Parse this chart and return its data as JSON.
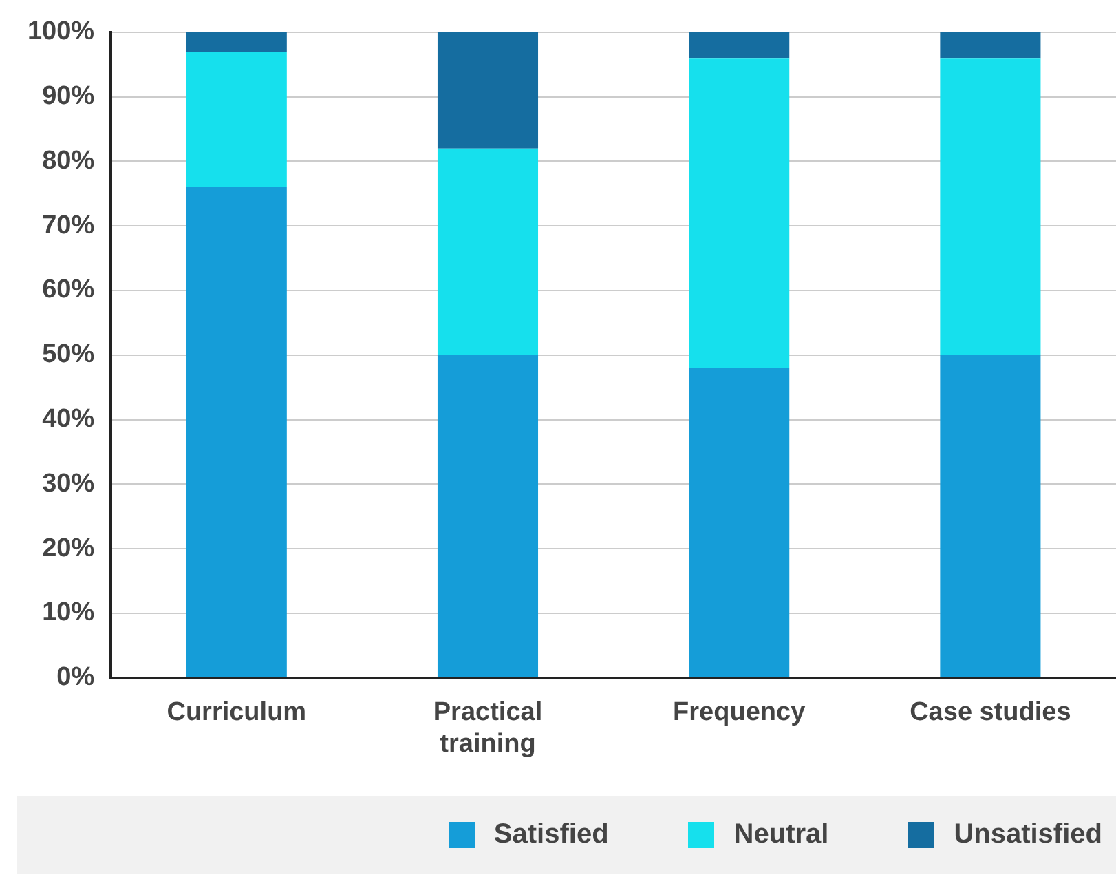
{
  "chart_data": {
    "type": "bar",
    "stacked": true,
    "categories": [
      "Curriculum",
      "Practical training",
      "Frequency",
      "Case studies"
    ],
    "series": [
      {
        "name": "Satisfied",
        "color": "#159dd8",
        "values": [
          76,
          50,
          48,
          50
        ]
      },
      {
        "name": "Neutral",
        "color": "#16e0ed",
        "values": [
          21,
          32,
          48,
          46
        ]
      },
      {
        "name": "Unsatisfied",
        "color": "#156da0",
        "values": [
          3,
          18,
          4,
          4
        ]
      }
    ],
    "ylim": [
      0,
      100
    ],
    "yticks": [
      {
        "value": 0,
        "label": "0%"
      },
      {
        "value": 10,
        "label": "10%"
      },
      {
        "value": 20,
        "label": "20%"
      },
      {
        "value": 30,
        "label": "30%"
      },
      {
        "value": 40,
        "label": "40%"
      },
      {
        "value": 50,
        "label": "50%"
      },
      {
        "value": 60,
        "label": "60%"
      },
      {
        "value": 70,
        "label": "70%"
      },
      {
        "value": 80,
        "label": "80%"
      },
      {
        "value": 90,
        "label": "90%"
      },
      {
        "value": 100,
        "label": "100%"
      }
    ],
    "grid": "y",
    "legend": "bottom right"
  }
}
